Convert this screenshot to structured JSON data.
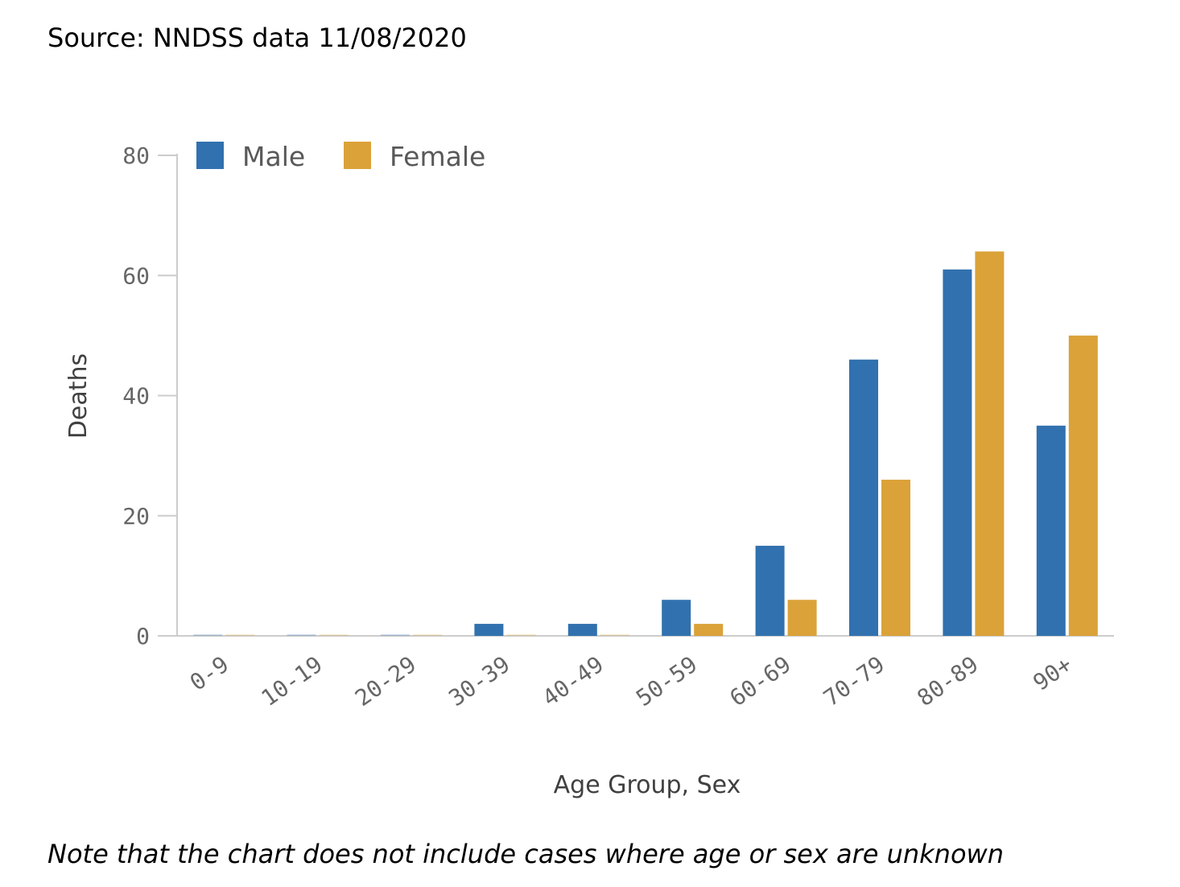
{
  "source_text": "Source: NNDSS data 11/08/2020",
  "note_text": "Note that the chart does not include cases where age or sex are unknown",
  "chart_data": {
    "type": "bar",
    "xlabel": "Age Group, Sex",
    "ylabel": "Deaths",
    "ylim": [
      0,
      80
    ],
    "yticks": [
      0,
      20,
      40,
      60,
      80
    ],
    "categories": [
      "0-9",
      "10-19",
      "20-29",
      "30-39",
      "40-49",
      "50-59",
      "60-69",
      "70-79",
      "80-89",
      "90+"
    ],
    "series": [
      {
        "name": "Male",
        "color": "#3171AF",
        "values": [
          0,
          0,
          0,
          2,
          2,
          6,
          15,
          46,
          61,
          35
        ]
      },
      {
        "name": "Female",
        "color": "#DBA239",
        "values": [
          0,
          0,
          0,
          0,
          0,
          2,
          6,
          26,
          64,
          50
        ]
      }
    ],
    "legend_position": "top-left",
    "grid": false
  }
}
